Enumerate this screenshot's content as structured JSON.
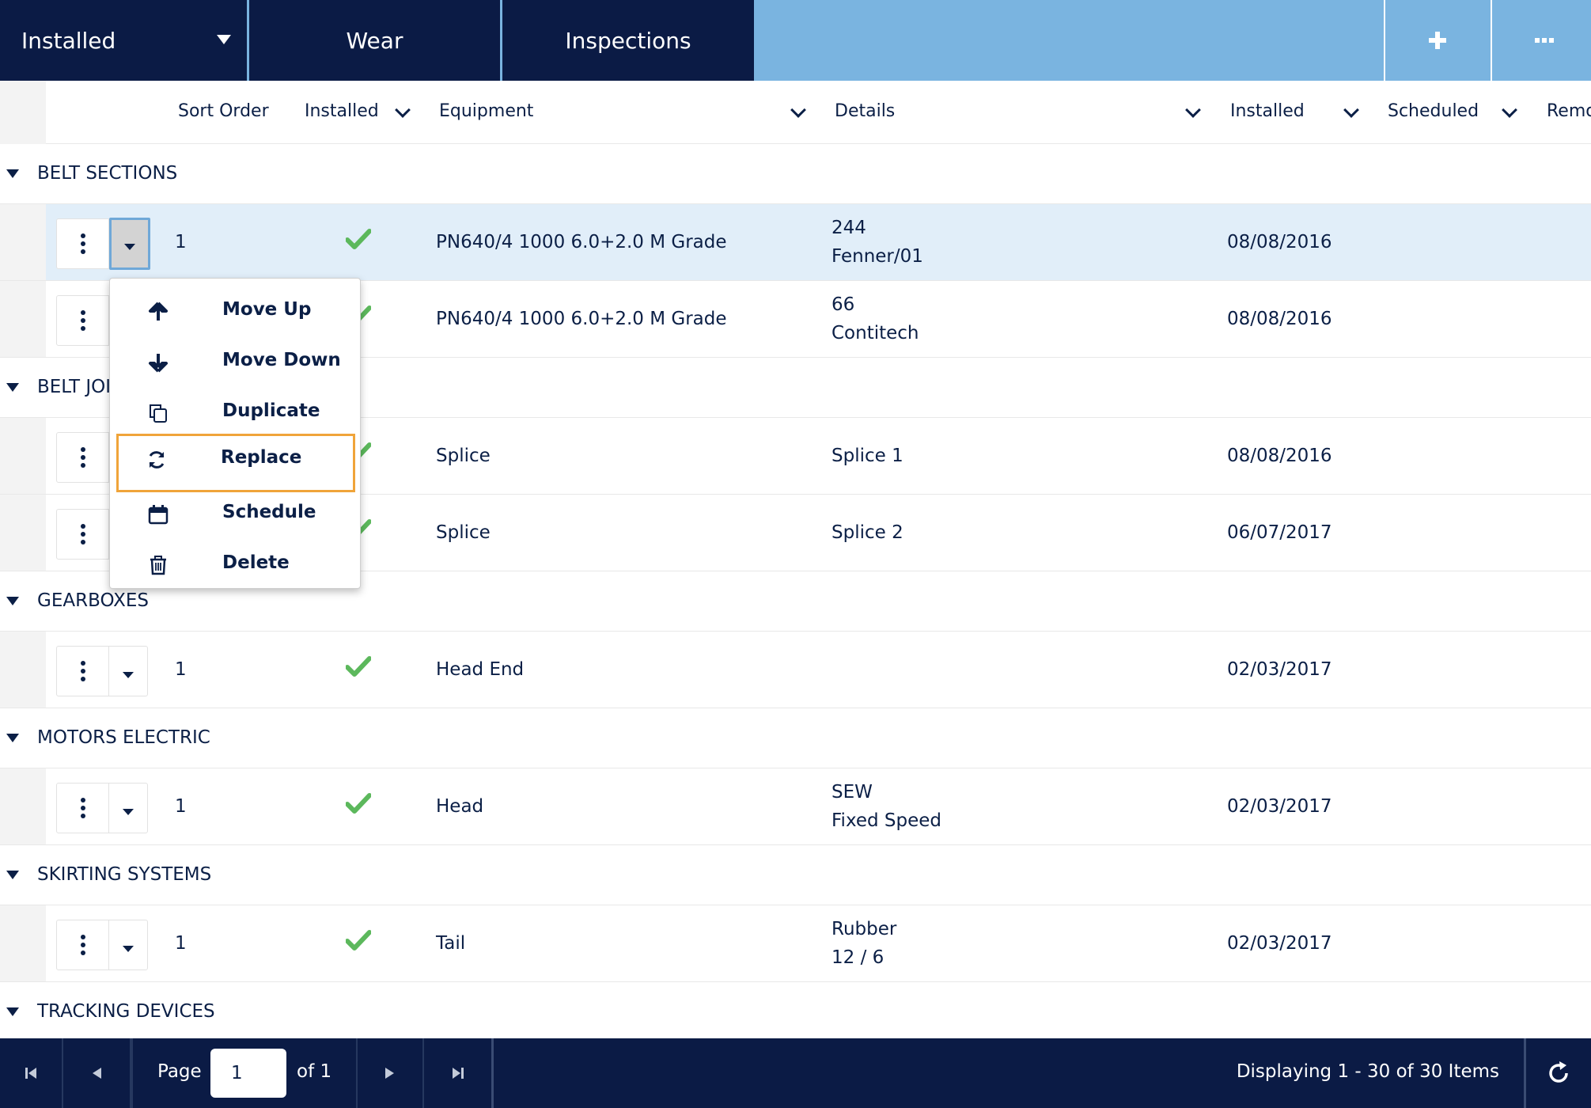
{
  "tabs": {
    "installed": "Installed",
    "wear": "Wear",
    "inspections": "Inspections"
  },
  "toolbar": {
    "add_icon": "plus-icon",
    "more_icon": "ellipsis-icon"
  },
  "columns": {
    "sort_order": "Sort Order",
    "installed_flag": "Installed",
    "equipment": "Equipment",
    "details": "Details",
    "installed_date": "Installed",
    "scheduled": "Scheduled",
    "removed": "Remo"
  },
  "groups": [
    {
      "label": "BELT SECTIONS"
    },
    {
      "label": "BELT JOI"
    },
    {
      "label": "GEARBOXES"
    },
    {
      "label": "MOTORS ELECTRIC"
    },
    {
      "label": "SKIRTING SYSTEMS"
    },
    {
      "label": "TRACKING DEVICES"
    }
  ],
  "rows": [
    {
      "sort": "1",
      "installed": true,
      "equipment": "PN640/4 1000 6.0+2.0 M Grade",
      "details1": "244",
      "details2": "Fenner/01",
      "date": "08/08/2016"
    },
    {
      "sort": "",
      "installed": true,
      "equipment": "PN640/4 1000 6.0+2.0 M Grade",
      "details1": "66",
      "details2": "Contitech",
      "date": "08/08/2016"
    },
    {
      "sort": "",
      "installed": true,
      "equipment": "Splice",
      "details1": "Splice 1",
      "details2": "",
      "date": "08/08/2016"
    },
    {
      "sort": "",
      "installed": true,
      "equipment": "Splice",
      "details1": "Splice 2",
      "details2": "",
      "date": "06/07/2017"
    },
    {
      "sort": "1",
      "installed": true,
      "equipment": "Head End",
      "details1": "",
      "details2": "",
      "date": "02/03/2017"
    },
    {
      "sort": "1",
      "installed": true,
      "equipment": "Head",
      "details1": "SEW",
      "details2": "Fixed Speed",
      "date": "02/03/2017"
    },
    {
      "sort": "1",
      "installed": true,
      "equipment": "Tail",
      "details1": "Rubber",
      "details2": "12 / 6",
      "date": "02/03/2017"
    }
  ],
  "context_menu": {
    "items": [
      {
        "label": "Move Up",
        "icon": "arrow-up-icon"
      },
      {
        "label": "Move Down",
        "icon": "arrow-down-icon"
      },
      {
        "label": "Duplicate",
        "icon": "copy-icon"
      },
      {
        "label": "Replace",
        "icon": "refresh-icon"
      },
      {
        "label": "Schedule",
        "icon": "calendar-icon"
      },
      {
        "label": "Delete",
        "icon": "trash-icon"
      }
    ],
    "focused": "Replace"
  },
  "pager": {
    "page_label": "Page",
    "page_value": "1",
    "of_label": "of 1",
    "display_text": "Displaying 1 - 30 of 30 Items"
  },
  "colors": {
    "navy": "#0b1b45",
    "tab_bar_blue": "#7ab4e0",
    "selected_row": "#e1eef9",
    "check_green": "#5cb85c",
    "focus_orange": "#f0a43a"
  }
}
